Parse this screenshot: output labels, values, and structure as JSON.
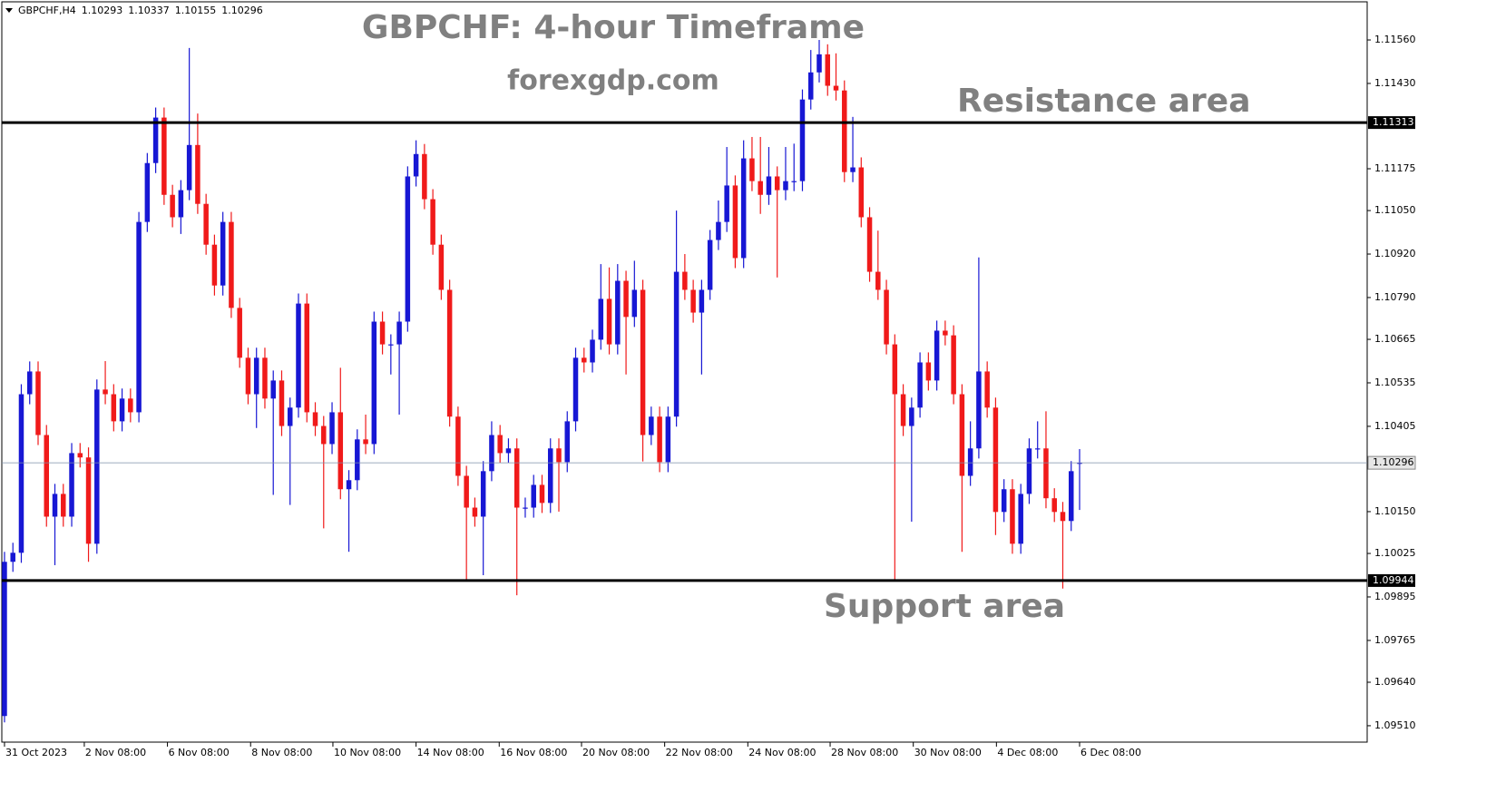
{
  "chart_data": {
    "type": "candlestick",
    "symbol": "GBPCHF,H4",
    "header_ohlc": [
      1.10293,
      1.10337,
      1.10155,
      1.10296
    ],
    "title": "GBPCHF: 4-hour Timeframe",
    "subtitle": "forexgdp.com",
    "annotations": [
      "Resistance area",
      "Support area"
    ],
    "up_color": "#1717d4",
    "down_color": "#f01a1a",
    "open": [
      1.09539,
      1.1,
      1.10027,
      1.10501,
      1.10569,
      1.10379,
      1.10135,
      1.10203,
      1.10135,
      1.10325,
      1.10312,
      1.10054,
      1.10515,
      1.10501,
      1.1042,
      1.10488,
      1.10447,
      1.11016,
      1.11192,
      1.11328,
      1.11097,
      1.1103,
      1.11111,
      1.11246,
      1.1107,
      1.10948,
      1.10826,
      1.11016,
      1.10759,
      1.1061,
      1.10501,
      1.1061,
      1.10488,
      1.10542,
      1.10406,
      1.10461,
      1.10772,
      1.10447,
      1.10406,
      1.10352,
      1.10447,
      1.10217,
      1.10244,
      1.10366,
      1.10352,
      1.10718,
      1.1065,
      1.1065,
      1.10718,
      1.11152,
      1.11219,
      1.11084,
      1.10948,
      1.10813,
      1.10434,
      1.10257,
      1.10162,
      1.10135,
      1.10271,
      1.10379,
      1.10325,
      1.10339,
      1.10162,
      1.10162,
      1.1023,
      1.10176,
      1.10339,
      1.10298,
      1.1042,
      1.1061,
      1.10596,
      1.10664,
      1.10786,
      1.1065,
      1.1084,
      1.10732,
      1.10813,
      1.10379,
      1.10434,
      1.10298,
      1.10434,
      1.10867,
      1.10813,
      1.10745,
      1.10813,
      1.10962,
      1.11016,
      1.11125,
      1.10908,
      1.11206,
      1.11138,
      1.11097,
      1.11152,
      1.11111,
      1.11138,
      1.11138,
      1.11382,
      1.11463,
      1.11517,
      1.11423,
      1.11409,
      1.11165,
      1.11179,
      1.1103,
      1.10867,
      1.10813,
      1.1065,
      1.10501,
      1.10406,
      1.10461,
      1.10596,
      1.10542,
      1.10691,
      1.10677,
      1.10501,
      1.10257,
      1.10339,
      1.10569,
      1.10461,
      1.10149,
      1.10217,
      1.10054,
      1.10203,
      1.10339,
      1.10339,
      1.1019,
      1.10149,
      1.10122,
      1.10293
    ],
    "high": [
      1.1003,
      1.10057,
      1.10531,
      1.10599,
      1.10599,
      1.10409,
      1.10233,
      1.10233,
      1.10355,
      1.10355,
      1.10342,
      1.10545,
      1.106,
      1.10531,
      1.10518,
      1.10518,
      1.11046,
      1.11222,
      1.11358,
      1.11358,
      1.11127,
      1.11141,
      1.11536,
      1.1134,
      1.111,
      1.10978,
      1.11046,
      1.11046,
      1.10789,
      1.1064,
      1.1064,
      1.1064,
      1.10572,
      1.10572,
      1.10491,
      1.10802,
      1.10802,
      1.10477,
      1.10436,
      1.10477,
      1.1058,
      1.10274,
      1.10396,
      1.1044,
      1.10748,
      1.10748,
      1.1068,
      1.10748,
      1.11182,
      1.1126,
      1.11249,
      1.11114,
      1.10978,
      1.10843,
      1.10464,
      1.10287,
      1.10192,
      1.10301,
      1.1042,
      1.10409,
      1.10369,
      1.10369,
      1.10192,
      1.1026,
      1.1026,
      1.10369,
      1.10369,
      1.1045,
      1.1064,
      1.1064,
      1.10694,
      1.1089,
      1.1088,
      1.1089,
      1.1087,
      1.109,
      1.10843,
      1.10464,
      1.10464,
      1.10464,
      1.1105,
      1.1092,
      1.10843,
      1.10843,
      1.10992,
      1.1108,
      1.1124,
      1.11155,
      1.1126,
      1.1127,
      1.1127,
      1.1124,
      1.11182,
      1.1124,
      1.1125,
      1.11412,
      1.1153,
      1.1156,
      1.11547,
      1.1152,
      1.11439,
      1.1133,
      1.11209,
      1.1106,
      1.1099,
      1.10843,
      1.1068,
      1.10531,
      1.10491,
      1.10626,
      1.10626,
      1.10721,
      1.10721,
      1.10707,
      1.10531,
      1.1042,
      1.1091,
      1.10599,
      1.10491,
      1.10247,
      1.10247,
      1.10233,
      1.10369,
      1.1042,
      1.1045,
      1.1022,
      1.10179,
      1.10301,
      1.10337
    ],
    "low": [
      1.0952,
      1.0997,
      1.09997,
      1.10471,
      1.10349,
      1.10105,
      1.0999,
      1.10105,
      1.10105,
      1.10282,
      1.1,
      1.10024,
      1.10471,
      1.1039,
      1.1039,
      1.10417,
      1.10417,
      1.10986,
      1.11162,
      1.11067,
      1.11,
      1.1098,
      1.11081,
      1.1104,
      1.10918,
      1.10796,
      1.10796,
      1.10729,
      1.1058,
      1.10471,
      1.104,
      1.10458,
      1.102,
      1.10376,
      1.1017,
      1.10431,
      1.10417,
      1.10376,
      1.101,
      1.10322,
      1.10187,
      1.1003,
      1.10214,
      1.10322,
      1.10322,
      1.1062,
      1.1056,
      1.1044,
      1.10688,
      1.11122,
      1.11054,
      1.10918,
      1.10783,
      1.10404,
      1.10227,
      1.09944,
      1.10105,
      1.0996,
      1.10241,
      1.10295,
      1.10295,
      1.099,
      1.10132,
      1.10132,
      1.10146,
      1.10146,
      1.1015,
      1.10268,
      1.1039,
      1.10566,
      1.10566,
      1.10634,
      1.1062,
      1.1062,
      1.1056,
      1.10702,
      1.103,
      1.10349,
      1.10268,
      1.10268,
      1.10404,
      1.10783,
      1.10715,
      1.1056,
      1.10783,
      1.10932,
      1.10986,
      1.10878,
      1.10878,
      1.11108,
      1.1104,
      1.11067,
      1.1085,
      1.11081,
      1.11108,
      1.11108,
      1.11352,
      1.11433,
      1.11393,
      1.11379,
      1.11135,
      1.11135,
      1.11,
      1.10837,
      1.10783,
      1.1062,
      1.09944,
      1.10376,
      1.1012,
      1.10431,
      1.10512,
      1.10512,
      1.10647,
      1.10471,
      1.1003,
      1.10227,
      1.10309,
      1.10431,
      1.1008,
      1.10119,
      1.10024,
      1.10024,
      1.10173,
      1.10309,
      1.1016,
      1.10119,
      1.0992,
      1.10092,
      1.10155
    ],
    "close": [
      1.1,
      1.10027,
      1.10501,
      1.10569,
      1.10379,
      1.10135,
      1.10203,
      1.10135,
      1.10325,
      1.10312,
      1.10054,
      1.10515,
      1.10501,
      1.1042,
      1.10488,
      1.10447,
      1.11016,
      1.11192,
      1.11328,
      1.11097,
      1.1103,
      1.11111,
      1.11246,
      1.1107,
      1.10948,
      1.10826,
      1.11016,
      1.10759,
      1.1061,
      1.10501,
      1.1061,
      1.10488,
      1.10542,
      1.10406,
      1.10461,
      1.10772,
      1.10447,
      1.10406,
      1.10352,
      1.10447,
      1.10217,
      1.10244,
      1.10366,
      1.10352,
      1.10718,
      1.1065,
      1.1065,
      1.10718,
      1.11152,
      1.11219,
      1.11084,
      1.10948,
      1.10813,
      1.10434,
      1.10257,
      1.10162,
      1.10135,
      1.10271,
      1.10379,
      1.10325,
      1.10339,
      1.10162,
      1.10162,
      1.1023,
      1.10176,
      1.10339,
      1.10298,
      1.1042,
      1.1061,
      1.10596,
      1.10664,
      1.10786,
      1.1065,
      1.1084,
      1.10732,
      1.10813,
      1.10379,
      1.10434,
      1.10298,
      1.10434,
      1.10867,
      1.10813,
      1.10745,
      1.10813,
      1.10962,
      1.11016,
      1.11125,
      1.10908,
      1.11206,
      1.11138,
      1.11097,
      1.11152,
      1.11111,
      1.11138,
      1.11138,
      1.11382,
      1.11463,
      1.11517,
      1.11423,
      1.11409,
      1.11165,
      1.11179,
      1.1103,
      1.10867,
      1.10813,
      1.1065,
      1.10501,
      1.10406,
      1.10461,
      1.10596,
      1.10542,
      1.10691,
      1.10677,
      1.10501,
      1.10257,
      1.10339,
      1.10569,
      1.10461,
      1.10149,
      1.10217,
      1.10054,
      1.10203,
      1.10339,
      1.10339,
      1.1019,
      1.10149,
      1.10122,
      1.10271,
      1.10296
    ],
    "xlim": [
      -0.32,
      162.24
    ],
    "xticks": [
      {
        "value": 0,
        "label": "31 Oct 2023"
      },
      {
        "value": 9.5,
        "label": "2 Nov 08:00"
      },
      {
        "value": 19.4,
        "label": "6 Nov 08:00"
      },
      {
        "value": 29.3,
        "label": "8 Nov 08:00"
      },
      {
        "value": 39.1,
        "label": "10 Nov 08:00"
      },
      {
        "value": 49,
        "label": "14 Nov 08:00"
      },
      {
        "value": 58.9,
        "label": "16 Nov 08:00"
      },
      {
        "value": 68.7,
        "label": "20 Nov 08:00"
      },
      {
        "value": 78.6,
        "label": "22 Nov 08:00"
      },
      {
        "value": 88.5,
        "label": "24 Nov 08:00"
      },
      {
        "value": 98.3,
        "label": "28 Nov 08:00"
      },
      {
        "value": 108.2,
        "label": "30 Nov 08:00"
      },
      {
        "value": 118.1,
        "label": "4 Dec 08:00"
      },
      {
        "value": 128,
        "label": "6 Dec 08:00"
      }
    ],
    "ylim": [
      1.09461,
      1.11674
    ],
    "yticks": [
      {
        "value": 1.1156,
        "label": "1.11560"
      },
      {
        "value": 1.1143,
        "label": "1.11430"
      },
      1.11175,
      {
        "value": 1.1105,
        "label": "1.11050"
      },
      {
        "value": 1.1092,
        "label": "1.10920"
      },
      {
        "value": 1.1079,
        "label": "1.10790"
      },
      1.10665,
      1.10535,
      1.10405,
      {
        "value": 1.1015,
        "label": "1.10150"
      },
      1.10025,
      1.09895,
      1.09765,
      {
        "value": 1.0964,
        "label": "1.09640"
      },
      {
        "value": 1.0951,
        "label": "1.09510"
      }
    ],
    "levels": [
      1.11313,
      1.09944
    ],
    "last_price": 1.10296
  }
}
